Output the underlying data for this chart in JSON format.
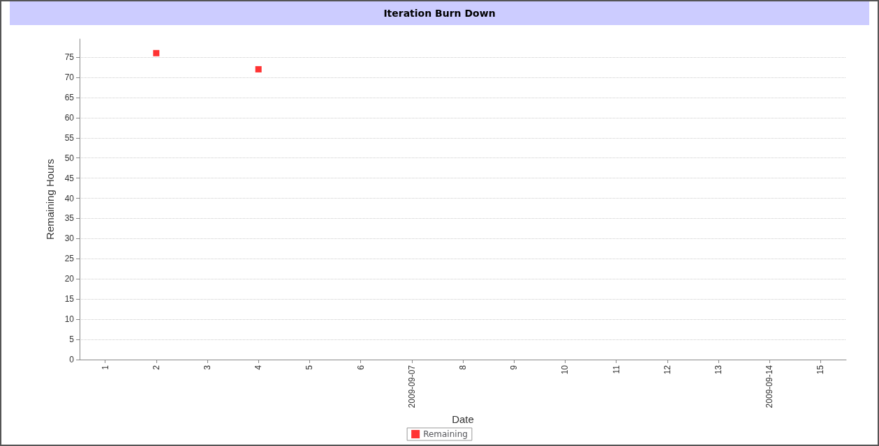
{
  "chart_data": {
    "type": "scatter",
    "title": "Iteration Burn Down",
    "xlabel": "Date",
    "ylabel": "Remaining Hours",
    "categories": [
      "1",
      "2",
      "3",
      "4",
      "5",
      "6",
      "2009-09-07",
      "8",
      "9",
      "10",
      "11",
      "12",
      "13",
      "2009-09-14",
      "15"
    ],
    "series": [
      {
        "name": "Remaining",
        "color": "#ff0000",
        "values": [
          null,
          76,
          null,
          72,
          null,
          null,
          null,
          null,
          null,
          null,
          null,
          null,
          null,
          null,
          null
        ]
      }
    ],
    "ylim": [
      0,
      79.5
    ],
    "yticks": [
      0,
      5,
      10,
      15,
      20,
      25,
      30,
      35,
      40,
      45,
      50,
      55,
      60,
      65,
      70,
      75
    ],
    "grid": "y",
    "legend": "bottom",
    "marker": "square"
  }
}
